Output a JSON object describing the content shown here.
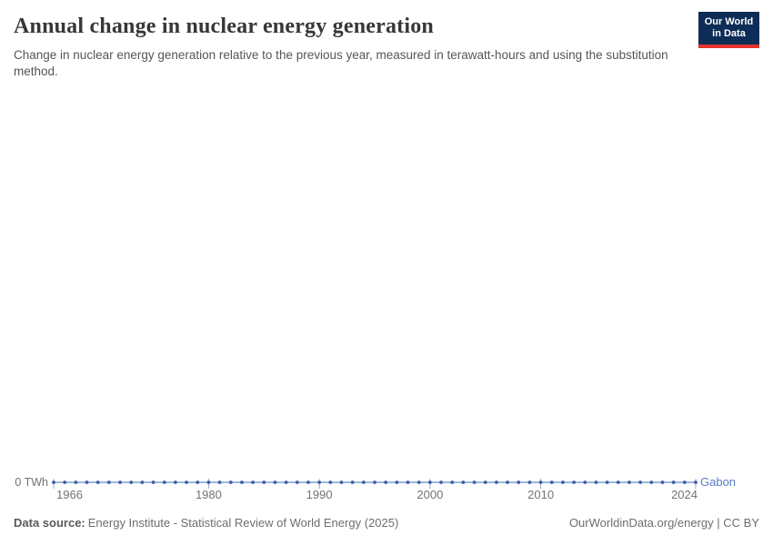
{
  "header": {
    "title": "Annual change in nuclear energy generation",
    "subtitle": "Change in nuclear energy generation relative to the previous year, measured in terawatt-hours and using the substitution method.",
    "logo": {
      "line1": "Our World",
      "line2": "in Data",
      "bg_color": "#0d2d56",
      "accent_color": "#e2332d"
    }
  },
  "chart_data": {
    "type": "line",
    "title": "Annual change in nuclear energy generation",
    "xlabel": "",
    "ylabel": "",
    "unit": "TWh",
    "grid": false,
    "legend_position": "end-of-line",
    "x": [
      1966,
      1967,
      1968,
      1969,
      1970,
      1971,
      1972,
      1973,
      1974,
      1975,
      1976,
      1977,
      1978,
      1979,
      1980,
      1981,
      1982,
      1983,
      1984,
      1985,
      1986,
      1987,
      1988,
      1989,
      1990,
      1991,
      1992,
      1993,
      1994,
      1995,
      1996,
      1997,
      1998,
      1999,
      2000,
      2001,
      2002,
      2003,
      2004,
      2005,
      2006,
      2007,
      2008,
      2009,
      2010,
      2011,
      2012,
      2013,
      2014,
      2015,
      2016,
      2017,
      2018,
      2019,
      2020,
      2021,
      2022,
      2023,
      2024
    ],
    "series": [
      {
        "name": "Gabon",
        "color": "#5a7cc0",
        "values": [
          0,
          0,
          0,
          0,
          0,
          0,
          0,
          0,
          0,
          0,
          0,
          0,
          0,
          0,
          0,
          0,
          0,
          0,
          0,
          0,
          0,
          0,
          0,
          0,
          0,
          0,
          0,
          0,
          0,
          0,
          0,
          0,
          0,
          0,
          0,
          0,
          0,
          0,
          0,
          0,
          0,
          0,
          0,
          0,
          0,
          0,
          0,
          0,
          0,
          0,
          0,
          0,
          0,
          0,
          0,
          0,
          0,
          0,
          0
        ]
      }
    ],
    "x_ticks": [
      1966,
      1980,
      1990,
      2000,
      2010,
      2024
    ],
    "y_axis_label": "0 TWh",
    "y_ticks_shown": [
      "0 TWh"
    ],
    "ylim_visible": [
      0,
      0
    ],
    "colors": {
      "line": "#7d9fd3",
      "marker": "#3a5f9f",
      "tick": "#9cacc4",
      "tick_label": "#737373",
      "axis_label": "#737373"
    }
  },
  "footer": {
    "source_label": "Data source:",
    "source_text": "Energy Institute - Statistical Review of World Energy (2025)",
    "right_text": "OurWorldinData.org/energy | CC BY"
  }
}
